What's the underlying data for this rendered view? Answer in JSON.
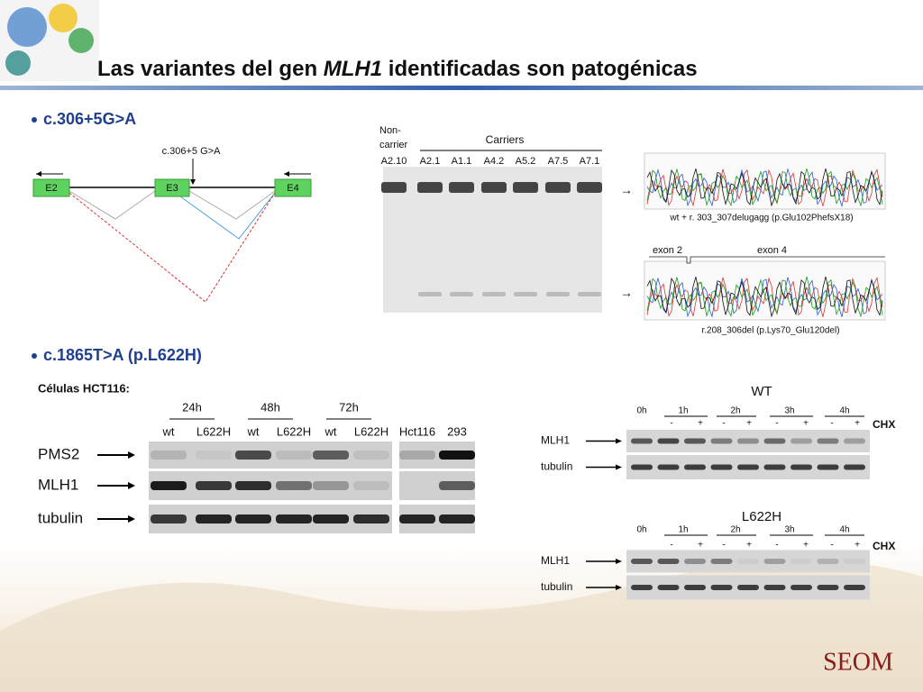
{
  "title": {
    "before": "Las variantes del gen ",
    "gene": "MLH1",
    "after": " identificadas son patogénicas"
  },
  "section1": {
    "bullet": "c.306+5G>A",
    "diagram": {
      "mutation": "c.306+5 G>A",
      "exons": [
        "E2",
        "E3",
        "E4"
      ]
    },
    "gel": {
      "non_carrier": [
        "Non-",
        "carrier"
      ],
      "carriers": "Carriers",
      "lanes": [
        "A2.10",
        "A2.1",
        "A1.1",
        "A4.2",
        "A5.2",
        "A7.5",
        "A7.1"
      ]
    },
    "sequence_wt": "wt + r. 303_307delugagg (p.Glu102PhefsX18)",
    "sequence_del": {
      "exon_left": "exon 2",
      "exon_right": "exon 4",
      "caption": "r.208_306del (p.Lys70_Glu120del)"
    }
  },
  "section2": {
    "bullet": "c.1865T>A (p.L622H)",
    "cells": "Células HCT116:",
    "times": [
      "24h",
      "48h",
      "72h"
    ],
    "lanes": [
      "wt",
      "L622H",
      "wt",
      "L622H",
      "wt",
      "L622H",
      "Hct116",
      "293"
    ],
    "rows": [
      "PMS2",
      "MLH1",
      "tubulin"
    ],
    "chx_panels": [
      {
        "title": "WT",
        "times": [
          "0h",
          "1h",
          "2h",
          "3h",
          "4h"
        ],
        "signs": [
          "-",
          "+"
        ],
        "treatment": "CHX",
        "rows": [
          "MLH1",
          "tubulin"
        ]
      },
      {
        "title": "L622H",
        "times": [
          "0h",
          "1h",
          "2h",
          "3h",
          "4h"
        ],
        "signs": [
          "-",
          "+"
        ],
        "treatment": "CHX",
        "rows": [
          "MLH1",
          "tubulin"
        ]
      }
    ]
  },
  "logo": "SEOM"
}
